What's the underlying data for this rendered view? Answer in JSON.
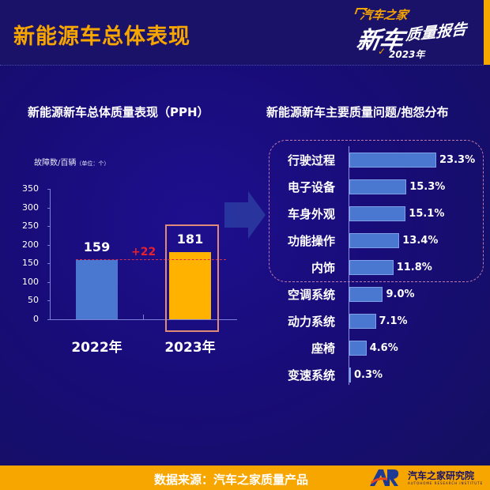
{
  "header": {
    "title": "新能源车总体表现",
    "logo": {
      "brand": "汽车之家",
      "big": "新车",
      "sub": "质量报告",
      "year": "2023年"
    }
  },
  "left_panel": {
    "title": "新能源新车总体质量表现（PPH）",
    "unit_label": "故障数/百辆",
    "unit_note": "（单位：个）",
    "y_ticks": [
      "350",
      "300",
      "250",
      "200",
      "150",
      "100",
      "50",
      "0"
    ],
    "diff_label": "+22"
  },
  "right_panel": {
    "title": "新能源新车主要质量问题/抱怨分布"
  },
  "footer": {
    "source": "数据来源：汽车之家质量产品",
    "org_name": "汽车之家研究院",
    "org_name_en": "AUTOHOME RESEARCH INSTITUTE",
    "org_logo": "AR"
  },
  "colors": {
    "accent_orange": "#f7a600",
    "bar_blue": "#4a78d0",
    "bar_highlight": "#ffb300",
    "diff_red": "#e8212e",
    "background": "#180c78"
  },
  "chart_data": [
    {
      "type": "bar",
      "title": "新能源新车总体质量表现（PPH）",
      "ylabel": "故障数/百辆（单位：个）",
      "xlabel": "",
      "categories": [
        "2022年",
        "2023年"
      ],
      "values": [
        159,
        181
      ],
      "value_labels": [
        "159",
        "181"
      ],
      "ylim": [
        0,
        350
      ],
      "yticks": [
        0,
        50,
        100,
        150,
        200,
        250,
        300,
        350
      ],
      "annotations": [
        {
          "text": "+22",
          "type": "difference",
          "reference_line": 159
        },
        {
          "type": "highlight-box",
          "category": "2023年"
        }
      ],
      "grid": false,
      "legend": null
    },
    {
      "type": "bar",
      "orientation": "horizontal",
      "title": "新能源新车主要质量问题/抱怨分布",
      "categories": [
        "行驶过程",
        "电子设备",
        "车身外观",
        "功能操作",
        "内饰",
        "空调系统",
        "动力系统",
        "座椅",
        "变速系统"
      ],
      "values": [
        23.3,
        15.3,
        15.1,
        13.4,
        11.8,
        9.0,
        7.1,
        4.6,
        0.3
      ],
      "value_labels": [
        "23.3%",
        "15.3%",
        "15.1%",
        "13.4%",
        "11.8%",
        "9.0%",
        "7.1%",
        "4.6%",
        "0.3%"
      ],
      "unit": "%",
      "annotations": [
        {
          "type": "dashed-group",
          "categories": [
            "行驶过程",
            "电子设备",
            "车身外观",
            "功能操作",
            "内饰"
          ]
        }
      ],
      "grid": false,
      "legend": null
    }
  ]
}
